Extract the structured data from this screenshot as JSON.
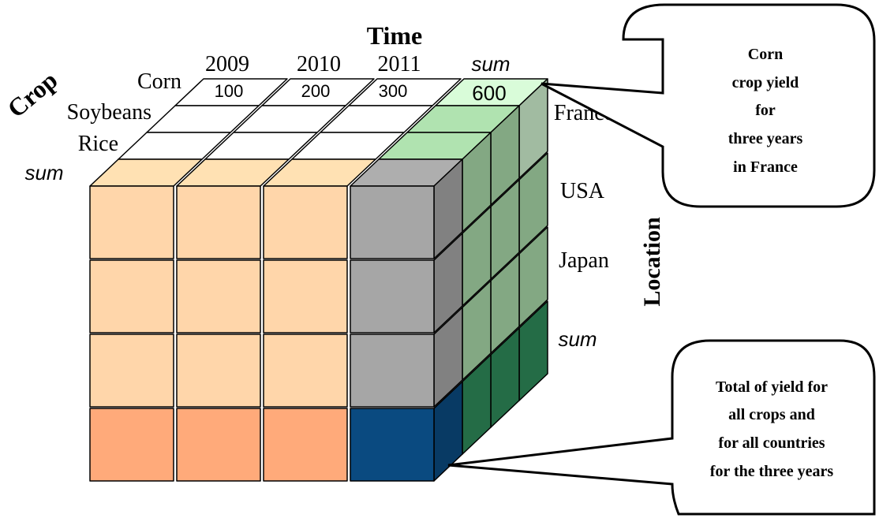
{
  "axes": {
    "time_title": "Time",
    "crop_title": "Crop",
    "location_title": "Location"
  },
  "years": [
    "2009",
    "2010",
    "2011"
  ],
  "time_sum_label": "sum",
  "crops": [
    "Corn",
    "Soybeans",
    "Rice"
  ],
  "crop_sum_label": "sum",
  "locations": [
    "France",
    "USA",
    "Japan"
  ],
  "location_sum_label": "sum",
  "corn_france_values": [
    "100",
    "200",
    "300"
  ],
  "corn_france_sum": "600",
  "callout_top": {
    "lines": [
      "Corn",
      "crop yield",
      "for",
      "three years",
      "in France"
    ]
  },
  "callout_bottom": {
    "lines": [
      "Total of yield for",
      "all crops and",
      "for all countries",
      "for the three years"
    ]
  },
  "colors": {
    "peach": "#FFD6AA",
    "peach_sum": "#FFAA7A",
    "gray": "#A6A6A6",
    "navy": "#0A4A80",
    "light_green": "#CFF0CF",
    "mid_green": "#A8D8A8",
    "dark_green": "#2E8B5A",
    "white_cell": "#FFFFFF"
  }
}
